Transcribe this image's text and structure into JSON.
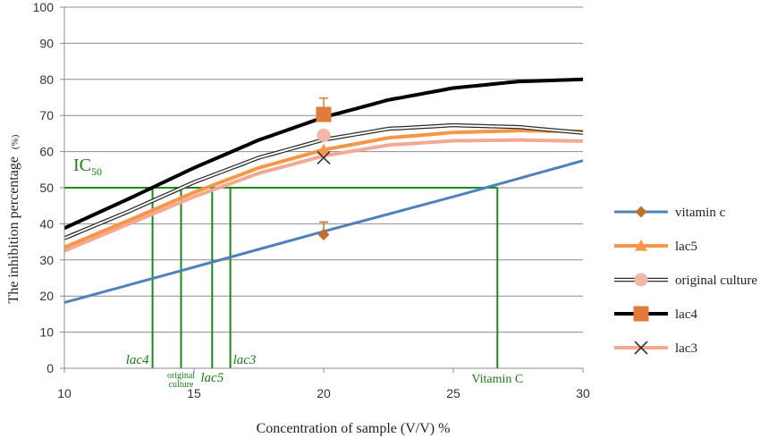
{
  "chart_data": {
    "type": "line",
    "title": "",
    "xlabel": "Concentration of sample (V/V) %",
    "ylabel": "The inhibition percentage",
    "ylabel_unit": "(%)",
    "xlim": [
      10,
      30
    ],
    "ylim": [
      0,
      100
    ],
    "x_ticks": [
      10,
      15,
      20,
      25,
      30
    ],
    "y_ticks": [
      0,
      10,
      20,
      30,
      40,
      50,
      60,
      70,
      80,
      90,
      100
    ],
    "grid": "horizontal",
    "legend_position": "right",
    "series": [
      {
        "name": "vitamin c",
        "color": "#4f81bd",
        "marker": "diamond",
        "marker_color": "#c0702a",
        "curve": [
          [
            10,
            18.2
          ],
          [
            15,
            28.0
          ],
          [
            20,
            37.9
          ],
          [
            25,
            47.5
          ],
          [
            30,
            57.5
          ]
        ],
        "point": {
          "x": 20,
          "y": 37,
          "err": 3.5
        }
      },
      {
        "name": "lac5",
        "color": "#f79646",
        "marker": "triangle",
        "marker_color": "#f79646",
        "curve": [
          [
            10,
            33.5
          ],
          [
            12.5,
            41.0
          ],
          [
            15,
            48.7
          ],
          [
            17.5,
            55.5
          ],
          [
            20,
            60.5
          ],
          [
            22.5,
            63.8
          ],
          [
            25,
            65.3
          ],
          [
            27.5,
            65.8
          ],
          [
            30,
            65.6
          ]
        ],
        "point": {
          "x": 20,
          "y": 60.5
        }
      },
      {
        "name": "original culture",
        "color": "#2b2b2b",
        "marker": "circle",
        "marker_color": "#f4b6a8",
        "curve": [
          [
            10,
            36.0
          ],
          [
            12.5,
            43.5
          ],
          [
            15,
            51.5
          ],
          [
            17.5,
            58.3
          ],
          [
            20,
            63.3
          ],
          [
            22.5,
            66.3
          ],
          [
            25,
            67.3
          ],
          [
            27.5,
            66.8
          ],
          [
            30,
            65.2
          ]
        ],
        "point": {
          "x": 20,
          "y": 64.5
        }
      },
      {
        "name": "lac4",
        "color": "#000000",
        "marker": "square",
        "marker_color": "#e07b39",
        "curve": [
          [
            10,
            38.8
          ],
          [
            12.5,
            47.0
          ],
          [
            15,
            55.5
          ],
          [
            17.5,
            63.2
          ],
          [
            20,
            69.5
          ],
          [
            22.5,
            74.3
          ],
          [
            25,
            77.6
          ],
          [
            27.5,
            79.4
          ],
          [
            30,
            80.0
          ]
        ],
        "point": {
          "x": 20,
          "y": 70.3,
          "err": 4.5
        }
      },
      {
        "name": "lac3",
        "color": "#f4a994",
        "marker": "x",
        "marker_color": "#333333",
        "curve": [
          [
            10,
            32.5
          ],
          [
            12.5,
            40.0
          ],
          [
            15,
            47.5
          ],
          [
            17.5,
            54.0
          ],
          [
            20,
            58.8
          ],
          [
            22.5,
            61.8
          ],
          [
            25,
            63.0
          ],
          [
            27.5,
            63.2
          ],
          [
            30,
            62.9
          ]
        ],
        "point": {
          "x": 20,
          "y": 58.3
        }
      }
    ],
    "ic50": {
      "label_main": "IC",
      "label_sub": "50",
      "y": 50,
      "color": "#1a8a1a",
      "markers": [
        {
          "label": "lac4",
          "x": 13.4,
          "style": "italic"
        },
        {
          "label": "original culture",
          "x": 14.5,
          "style": "small"
        },
        {
          "label": "lac5",
          "x": 15.7,
          "style": "italic"
        },
        {
          "label": "lac3",
          "x": 16.4,
          "style": "italic"
        },
        {
          "label": "Vitamin C",
          "x": 26.7,
          "style": "normal"
        }
      ]
    }
  }
}
